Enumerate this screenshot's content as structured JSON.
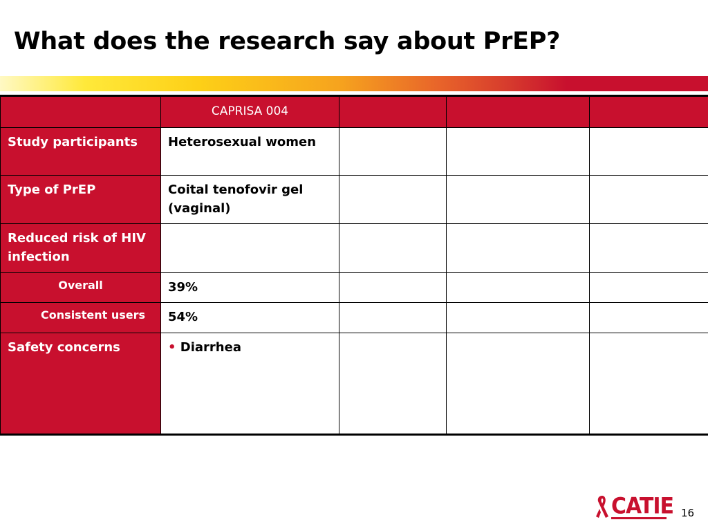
{
  "slide": {
    "title": "What does the research say about PrEP?",
    "page_number": "16",
    "logo_text": "CATIE"
  },
  "table": {
    "header": [
      "",
      "CAPRISA 004",
      "",
      "",
      ""
    ],
    "rows": [
      {
        "label": "Study participants",
        "values": [
          "Heterosexual women",
          "",
          "",
          ""
        ]
      },
      {
        "label": "Type of PrEP",
        "values": [
          "Coital tenofovir gel (vaginal)",
          "",
          "",
          ""
        ]
      },
      {
        "label": "Reduced risk of HIV infection",
        "values": [
          "",
          "",
          "",
          ""
        ]
      },
      {
        "label": "Overall",
        "values": [
          "39%",
          "",
          "",
          ""
        ]
      },
      {
        "label": "Consistent users",
        "values": [
          "54%",
          "",
          "",
          ""
        ]
      },
      {
        "label": "Safety concerns",
        "bullet": "•",
        "values": [
          "Diarrhea",
          "",
          "",
          ""
        ]
      }
    ]
  },
  "colors": {
    "accent_red": "#c8102e",
    "gradient_start": "#ffe93a",
    "gradient_mid": "#f6a31e"
  }
}
